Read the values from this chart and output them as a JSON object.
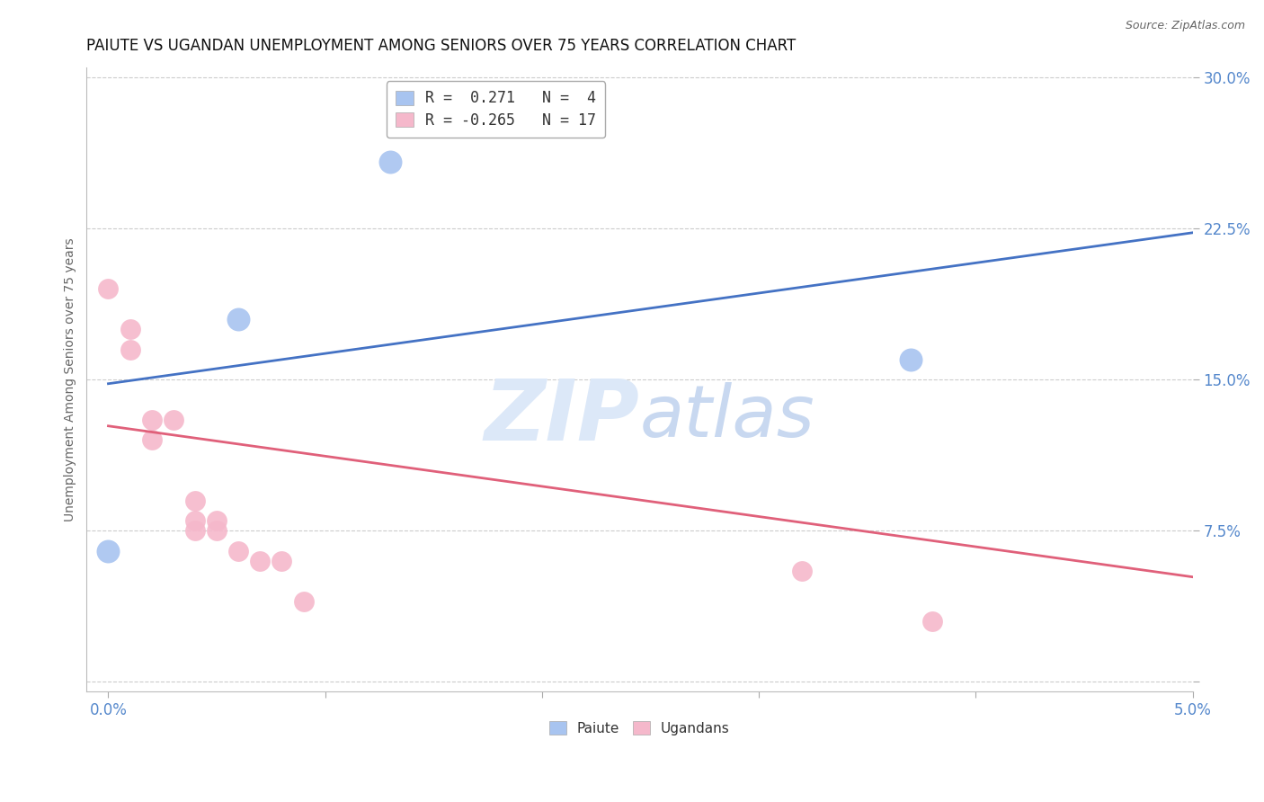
{
  "title": "PAIUTE VS UGANDAN UNEMPLOYMENT AMONG SENIORS OVER 75 YEARS CORRELATION CHART",
  "source": "Source: ZipAtlas.com",
  "ylabel": "Unemployment Among Seniors over 75 years",
  "x_ticks": [
    0.0,
    0.01,
    0.02,
    0.03,
    0.04,
    0.05
  ],
  "x_tick_labels": [
    "0.0%",
    "",
    "",
    "",
    "",
    "5.0%"
  ],
  "y_ticks": [
    0.0,
    0.075,
    0.15,
    0.225,
    0.3
  ],
  "y_tick_labels": [
    "",
    "7.5%",
    "15.0%",
    "22.5%",
    "30.0%"
  ],
  "xlim": [
    -0.001,
    0.05
  ],
  "ylim": [
    -0.005,
    0.305
  ],
  "paiute_color": "#a8c4f0",
  "ugandan_color": "#f5b8cb",
  "paiute_line_color": "#4472c4",
  "ugandan_line_color": "#e0607a",
  "legend_R_paiute": "R =  0.271",
  "legend_N_paiute": "N =  4",
  "legend_R_ugandan": "R = -0.265",
  "legend_N_ugandan": "N = 17",
  "paiute_points": [
    [
      0.0,
      0.065
    ],
    [
      0.006,
      0.18
    ],
    [
      0.013,
      0.258
    ],
    [
      0.037,
      0.16
    ]
  ],
  "ugandan_points": [
    [
      0.0,
      0.195
    ],
    [
      0.001,
      0.175
    ],
    [
      0.001,
      0.165
    ],
    [
      0.002,
      0.13
    ],
    [
      0.002,
      0.12
    ],
    [
      0.003,
      0.13
    ],
    [
      0.004,
      0.09
    ],
    [
      0.004,
      0.08
    ],
    [
      0.004,
      0.075
    ],
    [
      0.005,
      0.08
    ],
    [
      0.005,
      0.075
    ],
    [
      0.006,
      0.065
    ],
    [
      0.007,
      0.06
    ],
    [
      0.008,
      0.06
    ],
    [
      0.009,
      0.04
    ],
    [
      0.032,
      0.055
    ],
    [
      0.038,
      0.03
    ]
  ],
  "ugandan_trend_x": [
    0.0,
    0.05
  ],
  "ugandan_trend_y": [
    0.127,
    0.052
  ],
  "paiute_trend_x": [
    0.0,
    0.05
  ],
  "paiute_trend_y": [
    0.148,
    0.223
  ],
  "watermark_zip": "ZIP",
  "watermark_atlas": "atlas",
  "watermark_color_zip": "#dce8f8",
  "watermark_color_atlas": "#c8d8f0",
  "scatter_size_paiute": 350,
  "scatter_size_ugandan": 270,
  "background_color": "#ffffff",
  "grid_color": "#cccccc",
  "tick_color": "#5588cc",
  "title_fontsize": 12,
  "axis_label_fontsize": 10,
  "tick_fontsize": 12,
  "legend_fontsize": 12
}
